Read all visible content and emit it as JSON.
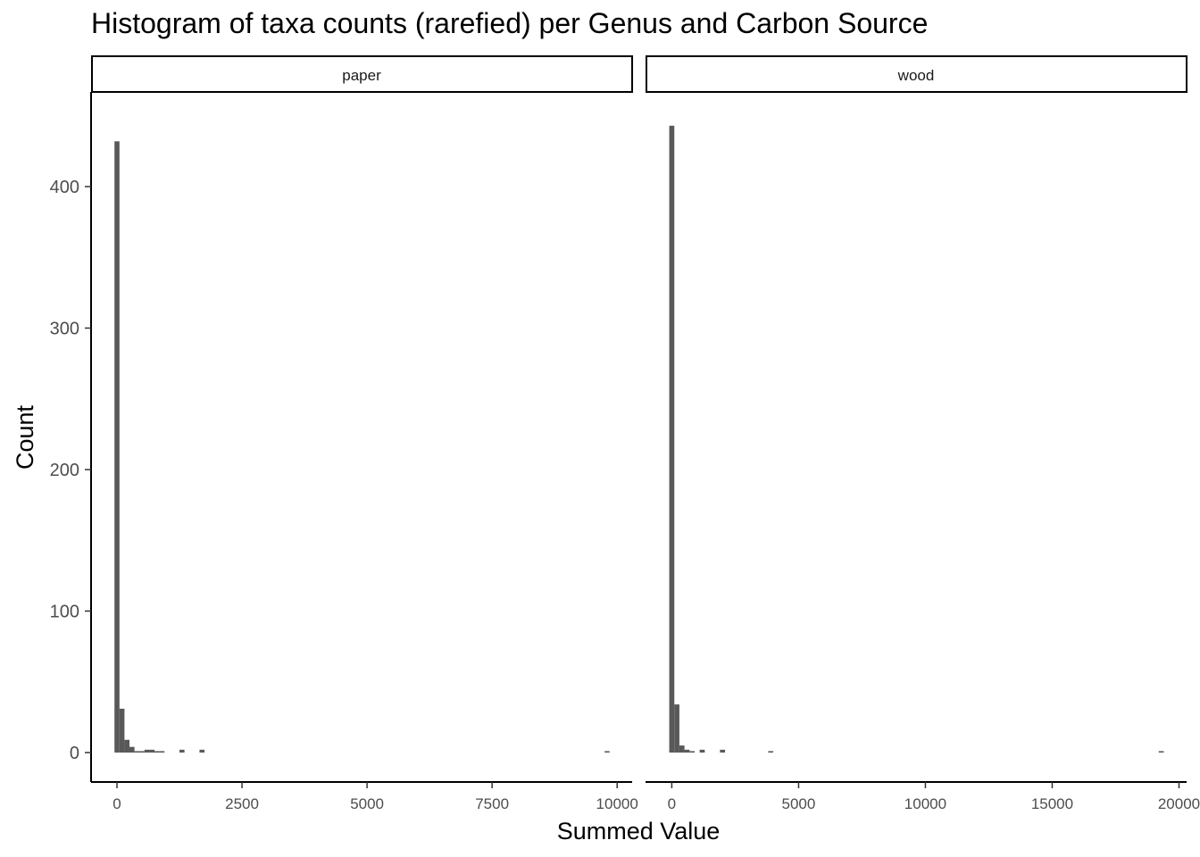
{
  "chart_data": {
    "type": "bar",
    "title": "Histogram of taxa counts (rarefied) per Genus and Carbon Source",
    "xlabel": "Summed Value",
    "ylabel": "Count",
    "ylim": [
      0,
      470
    ],
    "yticks": [
      0,
      100,
      200,
      300,
      400
    ],
    "grid": false,
    "bar_color": "#595959",
    "facets": [
      {
        "label": "paper",
        "xlim": [
          -500,
          10300
        ],
        "xticks": [
          0,
          2500,
          5000,
          7500,
          10000
        ],
        "bin_width": 100,
        "bins": [
          {
            "x": 0,
            "count": 432
          },
          {
            "x": 100,
            "count": 31
          },
          {
            "x": 200,
            "count": 9
          },
          {
            "x": 300,
            "count": 4
          },
          {
            "x": 400,
            "count": 1
          },
          {
            "x": 500,
            "count": 1
          },
          {
            "x": 600,
            "count": 2
          },
          {
            "x": 700,
            "count": 2
          },
          {
            "x": 800,
            "count": 1
          },
          {
            "x": 900,
            "count": 1
          },
          {
            "x": 1300,
            "count": 2
          },
          {
            "x": 1700,
            "count": 2
          },
          {
            "x": 9800,
            "count": 1
          }
        ]
      },
      {
        "label": "wood",
        "xlim": [
          -1000,
          20300
        ],
        "xticks": [
          0,
          5000,
          10000,
          15000,
          20000
        ],
        "bin_width": 200,
        "bins": [
          {
            "x": 0,
            "count": 443
          },
          {
            "x": 200,
            "count": 34
          },
          {
            "x": 400,
            "count": 5
          },
          {
            "x": 600,
            "count": 2
          },
          {
            "x": 800,
            "count": 1
          },
          {
            "x": 1200,
            "count": 2
          },
          {
            "x": 2000,
            "count": 2
          },
          {
            "x": 3900,
            "count": 1
          },
          {
            "x": 19300,
            "count": 1
          }
        ]
      }
    ]
  }
}
